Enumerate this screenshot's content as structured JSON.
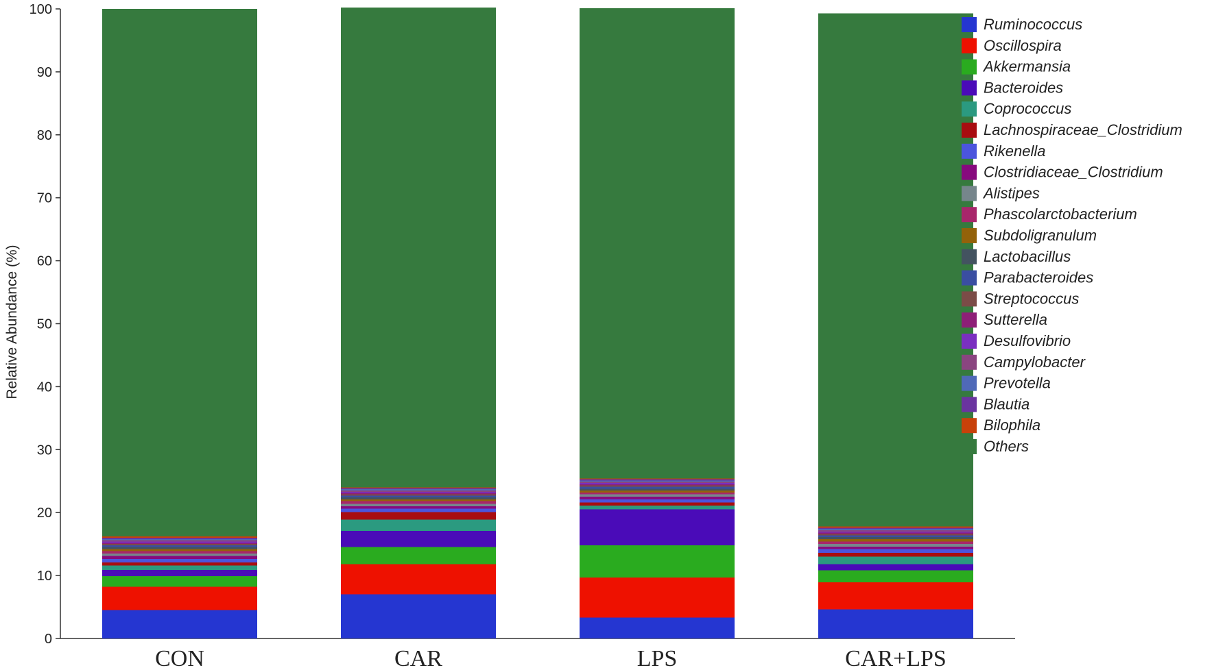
{
  "chart_data": {
    "type": "bar",
    "stacked": true,
    "title": "",
    "xlabel": "",
    "ylabel": "Relative Abundance (%)",
    "ylim": [
      0,
      100
    ],
    "yticks": [
      0,
      10,
      20,
      30,
      40,
      50,
      60,
      70,
      80,
      90,
      100
    ],
    "grid": false,
    "legend_position": "right",
    "categories": [
      "CON",
      "CAR",
      "LPS",
      "CAR+LPS"
    ],
    "series": [
      {
        "name": "Ruminococcus",
        "color": "#2536d1",
        "values": [
          4.5,
          7.0,
          3.3,
          4.6
        ]
      },
      {
        "name": "Oscillospira",
        "color": "#ee1100",
        "values": [
          3.7,
          4.8,
          6.4,
          4.3
        ]
      },
      {
        "name": "Akkermansia",
        "color": "#2aab1f",
        "values": [
          1.7,
          2.7,
          5.1,
          1.9
        ]
      },
      {
        "name": "Bacteroides",
        "color": "#4a0bb8",
        "values": [
          1.0,
          2.6,
          5.7,
          1.0
        ]
      },
      {
        "name": "Coprococcus",
        "color": "#2b9a80",
        "values": [
          0.7,
          1.8,
          0.6,
          1.2
        ]
      },
      {
        "name": "Lachnospiraceae_Clostridium",
        "color": "#a80d10",
        "values": [
          0.5,
          1.2,
          0.5,
          0.6
        ]
      },
      {
        "name": "Rikenella",
        "color": "#4b55dd",
        "values": [
          0.5,
          0.5,
          0.5,
          0.6
        ]
      },
      {
        "name": "Clostridiaceae_Clostridium",
        "color": "#870a7e",
        "values": [
          0.5,
          0.4,
          0.4,
          0.4
        ]
      },
      {
        "name": "Alistipes",
        "color": "#76868c",
        "values": [
          0.4,
          0.4,
          0.4,
          0.4
        ]
      },
      {
        "name": "Phascolarctobacterium",
        "color": "#a8266b",
        "values": [
          0.4,
          0.4,
          0.3,
          0.4
        ]
      },
      {
        "name": "Subdoligranulum",
        "color": "#93620a",
        "values": [
          0.3,
          0.3,
          0.3,
          0.4
        ]
      },
      {
        "name": "Lactobacillus",
        "color": "#435360",
        "values": [
          0.3,
          0.3,
          0.3,
          0.3
        ]
      },
      {
        "name": "Parabacteroides",
        "color": "#3a4ea1",
        "values": [
          0.3,
          0.3,
          0.3,
          0.3
        ]
      },
      {
        "name": "Streptococcus",
        "color": "#7b4c47",
        "values": [
          0.2,
          0.2,
          0.2,
          0.2
        ]
      },
      {
        "name": "Sutterella",
        "color": "#8d1f77",
        "values": [
          0.2,
          0.2,
          0.2,
          0.2
        ]
      },
      {
        "name": "Desulfovibrio",
        "color": "#7a2fc0",
        "values": [
          0.2,
          0.2,
          0.2,
          0.2
        ]
      },
      {
        "name": "Campylobacter",
        "color": "#8a4580",
        "values": [
          0.2,
          0.2,
          0.2,
          0.2
        ]
      },
      {
        "name": "Prevotella",
        "color": "#4f69b8",
        "values": [
          0.2,
          0.2,
          0.2,
          0.2
        ]
      },
      {
        "name": "Blautia",
        "color": "#6a34a0",
        "values": [
          0.2,
          0.2,
          0.2,
          0.2
        ]
      },
      {
        "name": "Bilophila",
        "color": "#c8410a",
        "values": [
          0.2,
          0.1,
          0.1,
          0.2
        ]
      },
      {
        "name": "Others",
        "color": "#367a3e",
        "values": [
          83.8,
          76.2,
          74.7,
          81.5
        ]
      }
    ]
  }
}
